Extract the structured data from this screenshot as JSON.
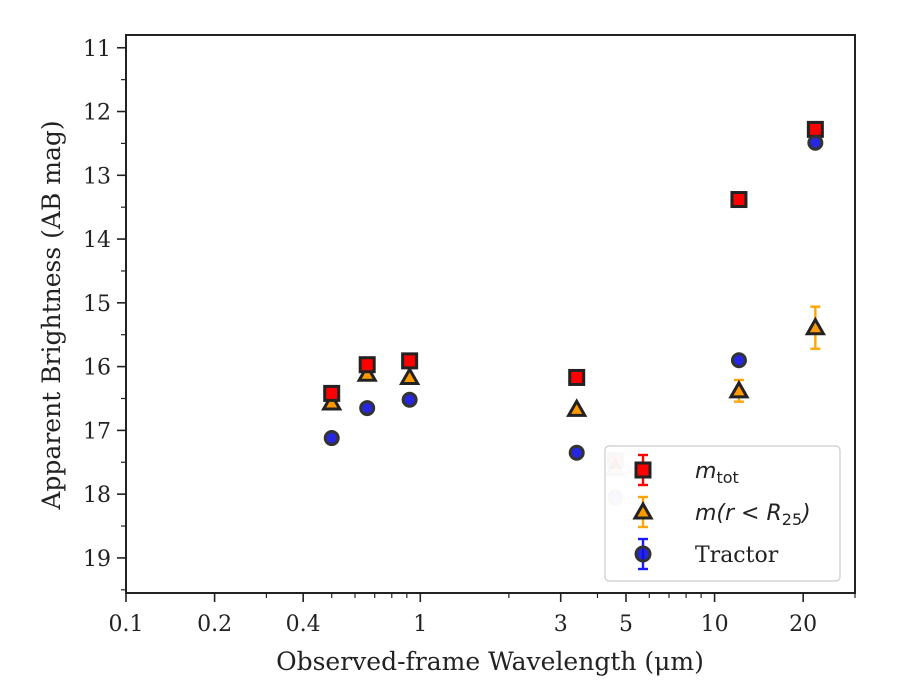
{
  "chart_data": {
    "type": "scatter",
    "xlabel": "Observed-frame Wavelength (μm)",
    "ylabel": "Apparent Brightness (AB mag)",
    "xscale": "log",
    "xlim": [
      0.1,
      30
    ],
    "ylim": [
      19.55,
      10.8
    ],
    "y_inverted": true,
    "xticks": [
      {
        "value": 0.1,
        "label": "0.1"
      },
      {
        "value": 0.2,
        "label": "0.2"
      },
      {
        "value": 0.4,
        "label": "0.4"
      },
      {
        "value": 1,
        "label": "1"
      },
      {
        "value": 3,
        "label": "3"
      },
      {
        "value": 5,
        "label": "5"
      },
      {
        "value": 10,
        "label": "10"
      },
      {
        "value": 20,
        "label": "20"
      }
    ],
    "yticks": [
      11,
      12,
      13,
      14,
      15,
      16,
      17,
      18,
      19
    ],
    "legend_position": "lower-right",
    "series": [
      {
        "name": "m_tot",
        "legend_main": "m",
        "legend_sub": "tot",
        "marker": "square",
        "color": "#ff0000",
        "edge_color": "#222222",
        "error_color": "#ff0000",
        "points": [
          {
            "x": 0.5,
            "y": 16.42,
            "err": 0.05
          },
          {
            "x": 0.66,
            "y": 15.97,
            "err": 0.05
          },
          {
            "x": 0.92,
            "y": 15.91,
            "err": 0.05
          },
          {
            "x": 3.4,
            "y": 16.17,
            "err": 0.05
          },
          {
            "x": 4.6,
            "y": 17.47,
            "err": 0.05,
            "faded": true
          },
          {
            "x": 12.1,
            "y": 13.38,
            "err": 0.05
          },
          {
            "x": 22.0,
            "y": 12.28,
            "err": 0.05
          }
        ]
      },
      {
        "name": "m(r<R_25)",
        "legend_main": "m(r < R",
        "legend_sub": "25",
        "legend_tail": ")",
        "marker": "triangle",
        "color": "#ff9900",
        "edge_color": "#222222",
        "error_color": "#ffa500",
        "points": [
          {
            "x": 0.5,
            "y": 16.57,
            "err": 0.05
          },
          {
            "x": 0.66,
            "y": 16.12,
            "err": 0.05
          },
          {
            "x": 0.92,
            "y": 16.17,
            "err": 0.05
          },
          {
            "x": 3.4,
            "y": 16.67,
            "err": 0.05
          },
          {
            "x": 4.6,
            "y": 17.6,
            "err": 0.05,
            "faded": true
          },
          {
            "x": 12.1,
            "y": 16.38,
            "err": 0.17
          },
          {
            "x": 22.0,
            "y": 15.39,
            "err": 0.33
          }
        ]
      },
      {
        "name": "Tractor",
        "legend_main": "Tractor",
        "marker": "circle",
        "color": "#1010e0",
        "edge_color": "#333333",
        "error_color": "#1a1aff",
        "points": [
          {
            "x": 0.5,
            "y": 17.12,
            "err": 0.05
          },
          {
            "x": 0.66,
            "y": 16.65,
            "err": 0.05
          },
          {
            "x": 0.92,
            "y": 16.52,
            "err": 0.05
          },
          {
            "x": 3.4,
            "y": 17.35,
            "err": 0.05
          },
          {
            "x": 4.6,
            "y": 18.05,
            "err": 0.05,
            "faded": true
          },
          {
            "x": 12.1,
            "y": 15.9,
            "err": 0.05
          },
          {
            "x": 22.0,
            "y": 12.49,
            "err": 0.05
          }
        ]
      }
    ]
  }
}
